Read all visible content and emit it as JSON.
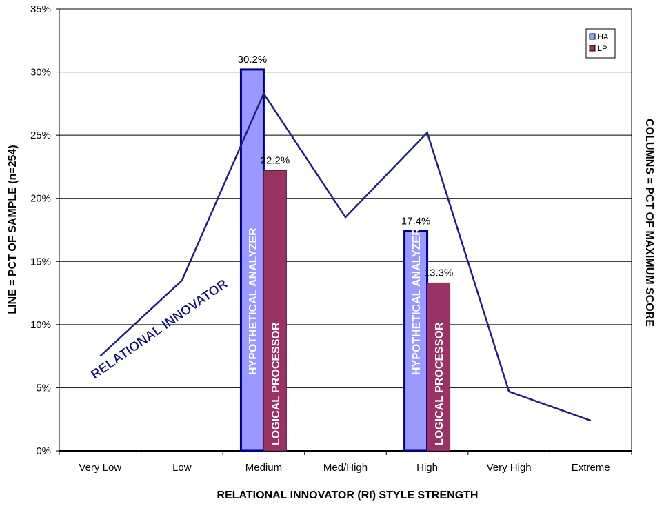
{
  "chart_data": {
    "type": "bar",
    "categories": [
      "Very Low",
      "Low",
      "Medium",
      "Med/High",
      "High",
      "Very High",
      "Extreme"
    ],
    "ylim": [
      0,
      35
    ],
    "yticks": [
      "0%",
      "5%",
      "10%",
      "15%",
      "20%",
      "25%",
      "30%",
      "35%"
    ],
    "ylabel": "LINE = PCT OF SAMPLE (n=254)",
    "y2label": "COLUMNS  =  PCT OF MAXIMUM SCORE",
    "xlabel": "RELATIONAL INNOVATOR (RI) STYLE STRENGTH",
    "grid": true,
    "legend_position": "top-right",
    "series": [
      {
        "name": "HA",
        "kind": "bar",
        "color": "#9999ff",
        "values": [
          null,
          null,
          30.2,
          null,
          17.4,
          null,
          null
        ],
        "labels": [
          "",
          "",
          "30.2%",
          "",
          "17.4%",
          "",
          ""
        ],
        "bar_text": "HYPOTHETICAL ANALYZER"
      },
      {
        "name": "LP",
        "kind": "bar",
        "color": "#993366",
        "values": [
          null,
          null,
          22.2,
          null,
          13.3,
          null,
          null
        ],
        "labels": [
          "",
          "",
          "22.2%",
          "",
          "13.3%",
          "",
          ""
        ],
        "bar_text": "LOGICAL PROCESSOR"
      },
      {
        "name": "",
        "kind": "line",
        "color": "#1f1f7a",
        "values": [
          7.5,
          13.5,
          28.3,
          18.5,
          25.2,
          4.7,
          2.4
        ]
      }
    ],
    "annotations": [
      {
        "text": "RELATIONAL INNOVATOR",
        "category": "Very Low",
        "value": 8.5
      }
    ]
  }
}
